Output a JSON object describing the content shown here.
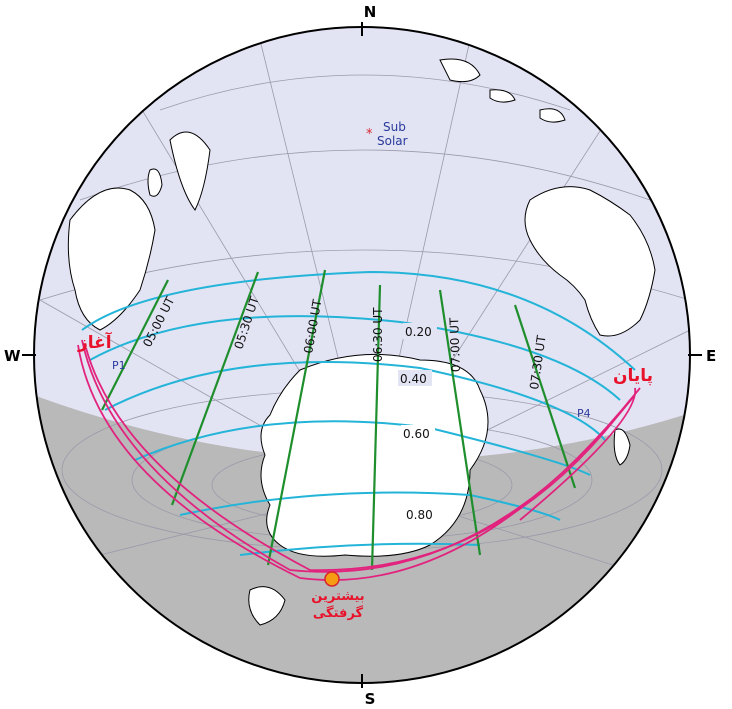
{
  "compass": {
    "north": "N",
    "south": "S",
    "west": "W",
    "east": "E"
  },
  "subsolar": {
    "line1": "Sub",
    "line2": "Solar"
  },
  "time_lines": [
    "05:00 UT",
    "05:30 UT",
    "06:00 UT",
    "06:30 UT",
    "07:00 UT",
    "07:30 UT"
  ],
  "magnitudes": [
    "0.20",
    "0.40",
    "0.60",
    "0.80"
  ],
  "contacts": {
    "p1": "P1",
    "p4": "P4"
  },
  "labels": {
    "start": "آغاز",
    "end": "پایان",
    "greatest_line1": "بیشترین",
    "greatest_line2": "گرفتگی"
  },
  "colors": {
    "ocean": "#e2e3f3",
    "night": "#b9b9b9",
    "land": "#ffffff",
    "magnitude_curve": "#23b4d8",
    "time_line": "#1e8f2c",
    "limit_curve": "#e2237e",
    "greatest_point": "#f59c12",
    "label_red": "#e8122b"
  }
}
